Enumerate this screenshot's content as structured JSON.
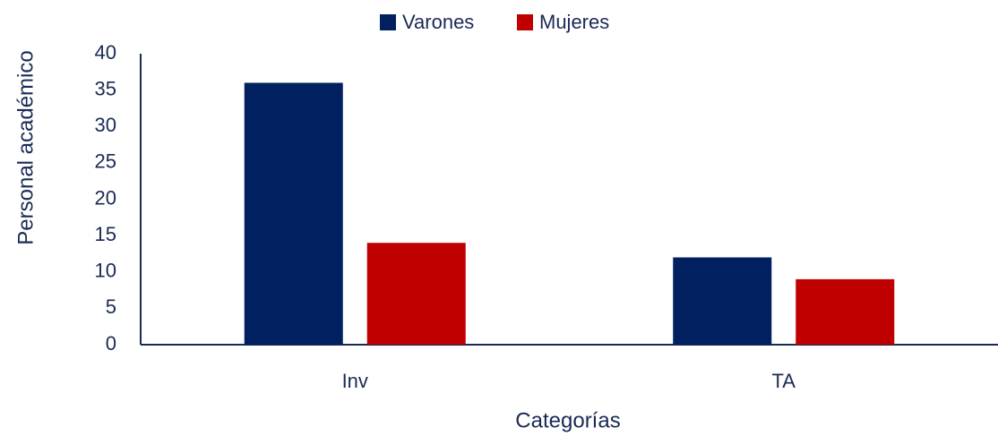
{
  "chart_data": {
    "type": "bar",
    "y_label": "Personal académico",
    "x_label": "Categorías",
    "categories": [
      "Inv",
      "TA"
    ],
    "series": [
      {
        "name": "Varones",
        "color": "#002060",
        "values": [
          36,
          12
        ]
      },
      {
        "name": "Mujeres",
        "color": "#c00000",
        "values": [
          14,
          9
        ]
      }
    ],
    "ylim": [
      0,
      40
    ],
    "yticks": [
      0,
      5,
      10,
      15,
      20,
      25,
      30,
      35,
      40
    ],
    "grid": false,
    "legend": "top"
  }
}
